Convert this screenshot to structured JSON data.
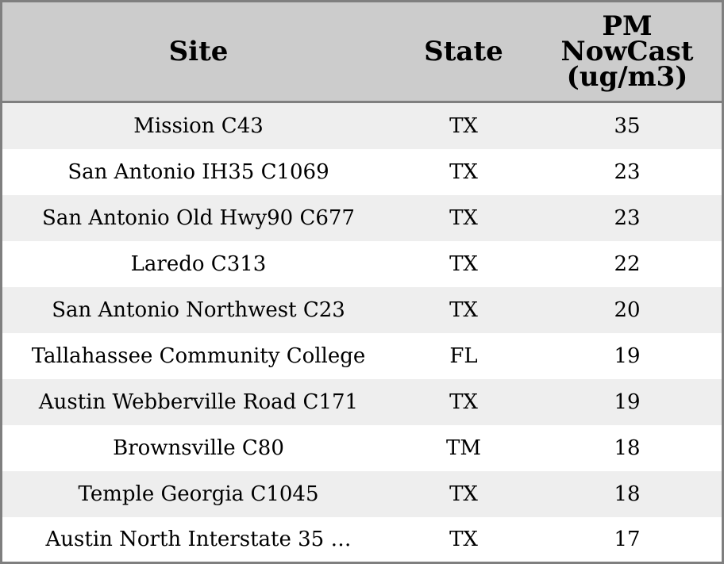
{
  "chart_data": {
    "type": "table",
    "columns": [
      "Site",
      "State",
      "PM NowCast (ug/m3)"
    ],
    "column_header_lines": [
      [
        "Site"
      ],
      [
        "State"
      ],
      [
        "PM",
        "NowCast",
        "(ug/m3)"
      ]
    ],
    "rows": [
      {
        "site": "Mission C43",
        "state": "TX",
        "pm": 35
      },
      {
        "site": "San Antonio IH35 C1069",
        "state": "TX",
        "pm": 23
      },
      {
        "site": "San Antonio Old Hwy90 C677",
        "state": "TX",
        "pm": 23
      },
      {
        "site": "Laredo C313",
        "state": "TX",
        "pm": 22
      },
      {
        "site": "San Antonio Northwest C23",
        "state": "TX",
        "pm": 20
      },
      {
        "site": "Tallahassee Community College",
        "state": "FL",
        "pm": 19
      },
      {
        "site": "Austin Webberville Road C171",
        "state": "TX",
        "pm": 19
      },
      {
        "site": "Brownsville C80",
        "state": "TM",
        "pm": 18
      },
      {
        "site": "Temple Georgia C1045",
        "state": "TX",
        "pm": 18
      },
      {
        "site": "Austin North Interstate 35 …",
        "state": "TX",
        "pm": 17
      }
    ]
  },
  "colors": {
    "header_bg": "#cccccc",
    "row_odd_bg": "#eeeeee",
    "row_even_bg": "#ffffff",
    "border": "#7f7f7f"
  }
}
